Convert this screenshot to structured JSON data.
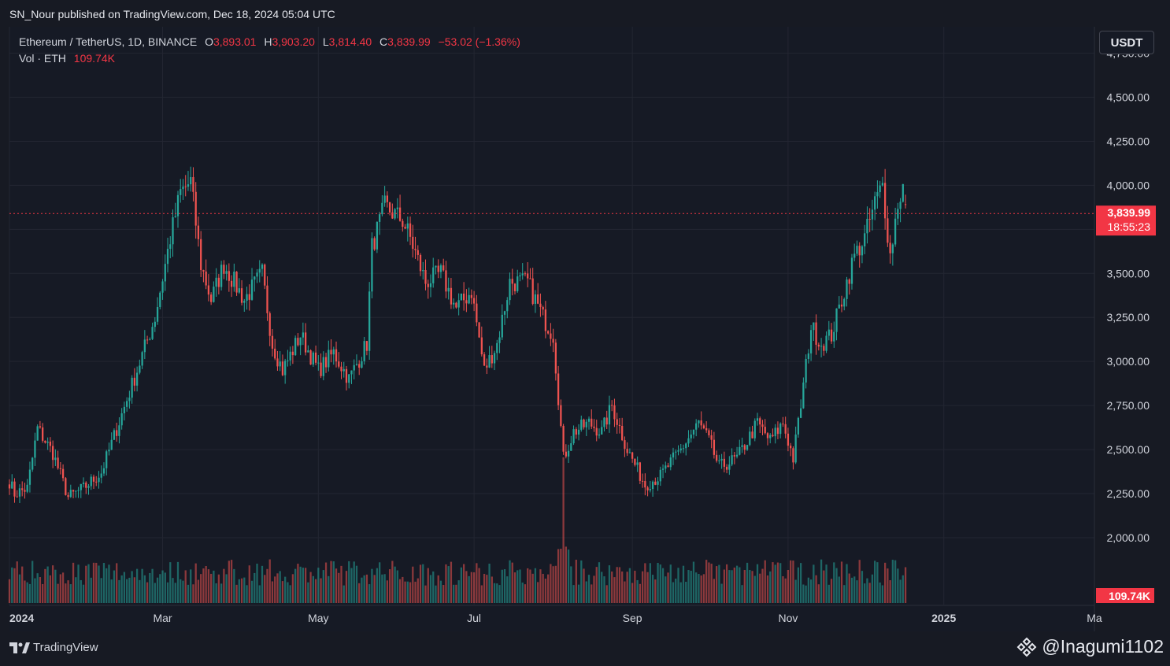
{
  "header": {
    "published_text": "SN_Nour published on TradingView.com, Dec 18, 2024 05:04 UTC"
  },
  "legend": {
    "symbol": "Ethereum / TetherUS, 1D, BINANCE",
    "open_label": "O",
    "open_value": "3,893.01",
    "high_label": "H",
    "high_value": "3,903.20",
    "low_label": "L",
    "low_value": "3,814.40",
    "close_label": "C",
    "close_value": "3,839.99",
    "change": "−53.02 (−1.36%)",
    "volume_label": "Vol · ETH",
    "volume_value": "109.74K"
  },
  "toolbar": {
    "currency_label": "USDT"
  },
  "price_badge": {
    "price": "3,839.99",
    "countdown": "18:55:23"
  },
  "volume_badge": {
    "value": "109.74K"
  },
  "footer": {
    "logo_text": "TradingView",
    "credit_text": "@Inagumi1102"
  },
  "colors": {
    "up": "#26a69a",
    "down": "#ef5350",
    "background": "#161a25",
    "grid": "#232632",
    "price_line": "#f23645"
  },
  "chart_data": {
    "type": "candlestick",
    "symbol": "ETH/USDT",
    "interval": "1D",
    "current_price": 3839.99,
    "y_ticks": [
      2000,
      2250,
      2500,
      2750,
      3000,
      3250,
      3500,
      3750,
      4000,
      4250,
      4500,
      4750
    ],
    "y_tick_labels": [
      "2,000.00",
      "2,250.00",
      "2,500.00",
      "2,750.00",
      "3,000.00",
      "3,250.00",
      "3,500.00",
      "3,750.00",
      "4,000.00",
      "4,250.00",
      "4,500.00",
      "4,750.00"
    ],
    "x_tick_labels": [
      "2024",
      "Mar",
      "May",
      "Jul",
      "Sep",
      "Nov",
      "2025",
      "Ma"
    ],
    "x_tick_dates": [
      "2024-01-01",
      "2024-03-01",
      "2024-05-01",
      "2024-07-01",
      "2024-09-01",
      "2024-11-01",
      "2025-01-01",
      "2025-03-01"
    ],
    "x_range": [
      "2024-01-01",
      "2025-03-01"
    ],
    "y_range": [
      1620,
      4900
    ],
    "price_path": [
      [
        "2024-01-01",
        2320
      ],
      [
        "2024-01-03",
        2250
      ],
      [
        "2024-01-08",
        2280
      ],
      [
        "2024-01-12",
        2620
      ],
      [
        "2024-01-18",
        2480
      ],
      [
        "2024-01-24",
        2230
      ],
      [
        "2024-01-30",
        2280
      ],
      [
        "2024-02-06",
        2370
      ],
      [
        "2024-02-14",
        2700
      ],
      [
        "2024-02-20",
        2950
      ],
      [
        "2024-02-27",
        3250
      ],
      [
        "2024-03-04",
        3700
      ],
      [
        "2024-03-08",
        3960
      ],
      [
        "2024-03-12",
        4020
      ],
      [
        "2024-03-16",
        3550
      ],
      [
        "2024-03-20",
        3350
      ],
      [
        "2024-03-25",
        3550
      ],
      [
        "2024-04-02",
        3350
      ],
      [
        "2024-04-09",
        3500
      ],
      [
        "2024-04-13",
        3100
      ],
      [
        "2024-04-17",
        2950
      ],
      [
        "2024-04-24",
        3150
      ],
      [
        "2024-05-01",
        2950
      ],
      [
        "2024-05-07",
        3050
      ],
      [
        "2024-05-13",
        2900
      ],
      [
        "2024-05-20",
        3100
      ],
      [
        "2024-05-22",
        3650
      ],
      [
        "2024-05-27",
        3880
      ],
      [
        "2024-06-03",
        3800
      ],
      [
        "2024-06-06",
        3700
      ],
      [
        "2024-06-12",
        3450
      ],
      [
        "2024-06-18",
        3500
      ],
      [
        "2024-06-24",
        3300
      ],
      [
        "2024-06-30",
        3400
      ],
      [
        "2024-07-05",
        2950
      ],
      [
        "2024-07-10",
        3100
      ],
      [
        "2024-07-15",
        3450
      ],
      [
        "2024-07-22",
        3450
      ],
      [
        "2024-07-28",
        3250
      ],
      [
        "2024-08-01",
        3150
      ],
      [
        "2024-08-05",
        2450
      ],
      [
        "2024-08-09",
        2600
      ],
      [
        "2024-08-15",
        2650
      ],
      [
        "2024-08-20",
        2600
      ],
      [
        "2024-08-24",
        2750
      ],
      [
        "2024-08-30",
        2500
      ],
      [
        "2024-09-06",
        2300
      ],
      [
        "2024-09-12",
        2350
      ],
      [
        "2024-09-20",
        2500
      ],
      [
        "2024-09-27",
        2650
      ],
      [
        "2024-10-01",
        2550
      ],
      [
        "2024-10-05",
        2400
      ],
      [
        "2024-10-12",
        2450
      ],
      [
        "2024-10-20",
        2650
      ],
      [
        "2024-10-25",
        2550
      ],
      [
        "2024-10-30",
        2650
      ],
      [
        "2024-11-03",
        2450
      ],
      [
        "2024-11-06",
        2750
      ],
      [
        "2024-11-10",
        3200
      ],
      [
        "2024-11-14",
        3100
      ],
      [
        "2024-11-18",
        3150
      ],
      [
        "2024-11-22",
        3350
      ],
      [
        "2024-11-27",
        3600
      ],
      [
        "2024-12-01",
        3700
      ],
      [
        "2024-12-05",
        3900
      ],
      [
        "2024-12-08",
        4000
      ],
      [
        "2024-12-11",
        3600
      ],
      [
        "2024-12-14",
        3900
      ],
      [
        "2024-12-16",
        3990
      ],
      [
        "2024-12-17",
        3893
      ]
    ],
    "volume_scale": "relative",
    "volume_spike": {
      "date": "2024-08-05",
      "relative": 1.0
    }
  }
}
